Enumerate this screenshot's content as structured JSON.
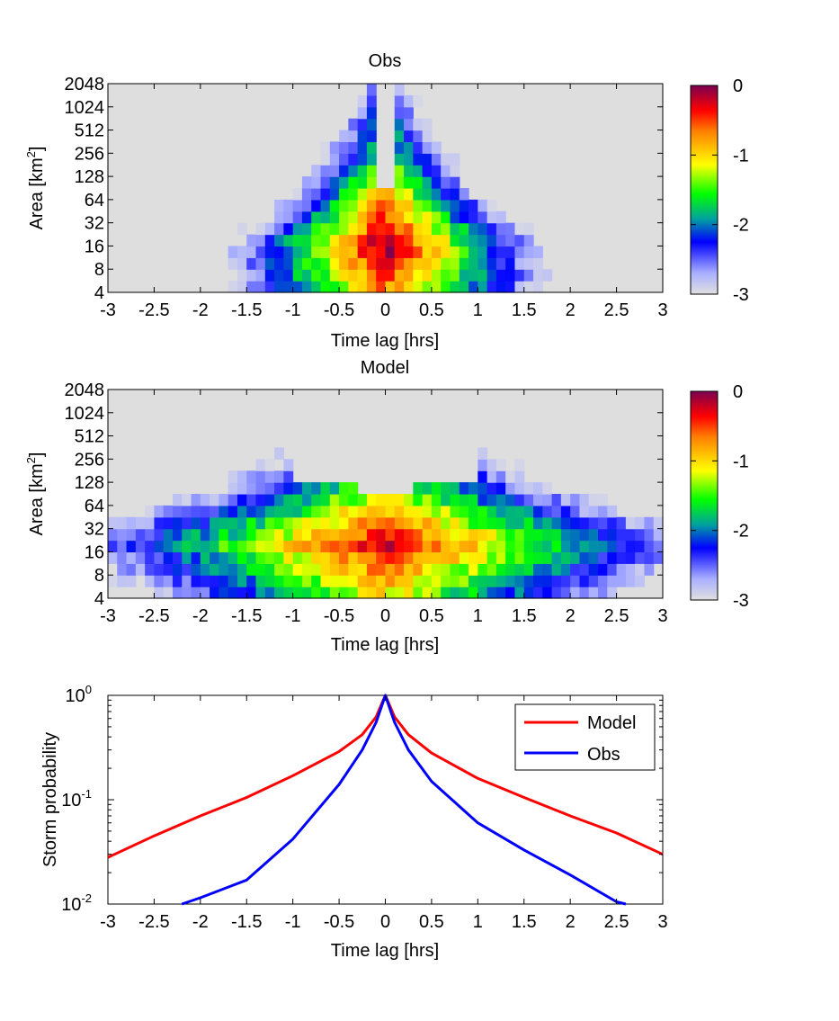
{
  "chart_data": [
    {
      "type": "heatmap",
      "title": "Obs",
      "xlabel": "Time lag [hrs]",
      "ylabel": "Area [km",
      "ylabel_sup": "2",
      "ylabel_end": "]",
      "xlim": [
        -3,
        3
      ],
      "x_ticks": [
        "-3",
        "-2.5",
        "-2",
        "-1.5",
        "-1",
        "-0.5",
        "0",
        "0.5",
        "1",
        "1.5",
        "2",
        "2.5",
        "3"
      ],
      "y_ticks": [
        "4",
        "8",
        "16",
        "32",
        "64",
        "128",
        "256",
        "512",
        "1024",
        "2048"
      ],
      "colorbar": {
        "range": [
          -3,
          0
        ],
        "ticks": [
          "0",
          "-1",
          "-2",
          "-3"
        ],
        "colormap": "jet-to-white (log10 probability)"
      }
    },
    {
      "type": "heatmap",
      "title": "Model",
      "xlabel": "Time lag [hrs]",
      "ylabel": "Area [km",
      "ylabel_sup": "2",
      "ylabel_end": "]",
      "xlim": [
        -3,
        3
      ],
      "x_ticks": [
        "-3",
        "-2.5",
        "-2",
        "-1.5",
        "-1",
        "-0.5",
        "0",
        "0.5",
        "1",
        "1.5",
        "2",
        "2.5",
        "3"
      ],
      "y_ticks": [
        "4",
        "8",
        "16",
        "32",
        "64",
        "128",
        "256",
        "512",
        "1024",
        "2048"
      ],
      "colorbar": {
        "range": [
          -3,
          0
        ],
        "ticks": [
          "0",
          "-1",
          "-2",
          "-3"
        ],
        "colormap": "jet-to-white (log10 probability)"
      }
    },
    {
      "type": "line",
      "xlabel": "Time lag [hrs]",
      "ylabel": "Storm probability",
      "xlim": [
        -3,
        3
      ],
      "ylim": [
        0.01,
        1
      ],
      "yscale": "log",
      "x_ticks": [
        "-3",
        "-2.5",
        "-2",
        "-1.5",
        "-1",
        "-0.5",
        "0",
        "0.5",
        "1",
        "1.5",
        "2",
        "2.5",
        "3"
      ],
      "y_ticks": [
        {
          "base": "10",
          "exp": "0"
        },
        {
          "base": "10",
          "exp": "-1"
        },
        {
          "base": "10",
          "exp": "-2"
        }
      ],
      "legend_position": "top-right",
      "series": [
        {
          "name": "Model",
          "color": "#ff0000",
          "x": [
            -3.0,
            -2.5,
            -2.0,
            -1.5,
            -1.0,
            -0.5,
            -0.25,
            -0.1,
            0.0,
            0.1,
            0.25,
            0.5,
            1.0,
            1.5,
            2.0,
            2.5,
            3.0
          ],
          "y": [
            0.028,
            0.045,
            0.07,
            0.105,
            0.17,
            0.29,
            0.42,
            0.62,
            1.0,
            0.62,
            0.42,
            0.28,
            0.16,
            0.105,
            0.07,
            0.048,
            0.03
          ]
        },
        {
          "name": "Obs",
          "color": "#0000ff",
          "x": [
            -2.2,
            -2.0,
            -1.5,
            -1.0,
            -0.5,
            -0.25,
            -0.1,
            0.0,
            0.1,
            0.25,
            0.5,
            1.0,
            1.5,
            2.0,
            2.5,
            2.6
          ],
          "y": [
            0.01,
            0.0115,
            0.017,
            0.042,
            0.14,
            0.3,
            0.55,
            1.0,
            0.55,
            0.3,
            0.15,
            0.06,
            0.033,
            0.019,
            0.0105,
            0.01
          ]
        }
      ]
    }
  ]
}
